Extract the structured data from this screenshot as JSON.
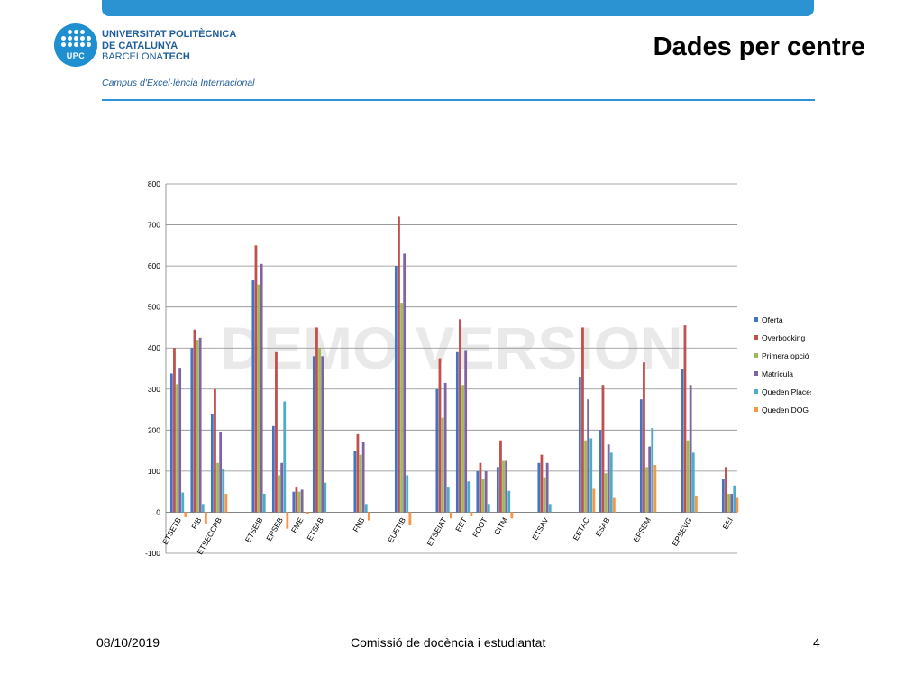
{
  "header": {
    "logo_abbr": "UPC",
    "logo_line1": "UNIVERSITAT POLITÈCNICA",
    "logo_line2": "DE CATALUNYA",
    "logo_line3_a": "BARCELONA",
    "logo_line3_b": "TECH",
    "campus": "Campus d'Excel·lència Internacional",
    "title": "Dades per centre"
  },
  "chart_data": {
    "type": "bar",
    "ylim": [
      -100,
      800
    ],
    "yticks": [
      -100,
      0,
      100,
      200,
      300,
      400,
      500,
      600,
      700,
      800
    ],
    "grid": true,
    "legend_position": "right",
    "watermark": "DEMO VERSION",
    "categories": [
      "ETSETB",
      "FIB",
      "ETSECCPB",
      "ETSEIB",
      "EPSEB",
      "FME",
      "ETSAB",
      "FNB",
      "EUETIB",
      "ETSEIAT",
      "EET",
      "FOOT",
      "CITM",
      "ETSAV",
      "EETAC",
      "ESAB",
      "EPSEM",
      "EPSEVG",
      "EEI"
    ],
    "groups": [
      [
        0,
        1,
        2
      ],
      [
        3,
        4,
        5,
        6
      ],
      [
        7
      ],
      [
        8
      ],
      [
        9,
        10,
        11,
        12
      ],
      [
        13
      ],
      [
        14,
        15
      ],
      [
        16
      ],
      [
        17
      ],
      [
        18
      ]
    ],
    "series": [
      {
        "name": "Oferta",
        "color": "#4472c4",
        "values": [
          338,
          400,
          240,
          565,
          210,
          50,
          380,
          150,
          600,
          300,
          390,
          100,
          110,
          120,
          330,
          200,
          275,
          350,
          80
        ]
      },
      {
        "name": "Overbooking",
        "color": "#c0504d",
        "values": [
          400,
          445,
          300,
          650,
          390,
          60,
          450,
          190,
          720,
          375,
          470,
          120,
          175,
          140,
          450,
          310,
          365,
          455,
          110
        ]
      },
      {
        "name": "Primera opció",
        "color": "#9bbb59",
        "values": [
          312,
          420,
          120,
          555,
          90,
          50,
          400,
          140,
          510,
          230,
          310,
          80,
          125,
          85,
          175,
          95,
          110,
          175,
          45
        ]
      },
      {
        "name": "Matrícula",
        "color": "#8064a2",
        "values": [
          352,
          425,
          195,
          605,
          120,
          55,
          380,
          170,
          630,
          315,
          395,
          100,
          125,
          120,
          275,
          165,
          160,
          310,
          45
        ]
      },
      {
        "name": "Queden Places",
        "color": "#4bacc6",
        "values": [
          48,
          20,
          105,
          45,
          270,
          0,
          72,
          20,
          90,
          60,
          75,
          20,
          52,
          20,
          180,
          145,
          205,
          145,
          65
        ]
      },
      {
        "name": "Queden DOG",
        "color": "#f79646",
        "values": [
          -12,
          -28,
          45,
          0,
          -40,
          -5,
          0,
          -20,
          -32,
          -15,
          -10,
          0,
          -15,
          0,
          57,
          35,
          115,
          40,
          35
        ]
      }
    ]
  },
  "footer": {
    "date": "08/10/2019",
    "center": "Comissió de docència i estudiantat",
    "page": "4"
  }
}
